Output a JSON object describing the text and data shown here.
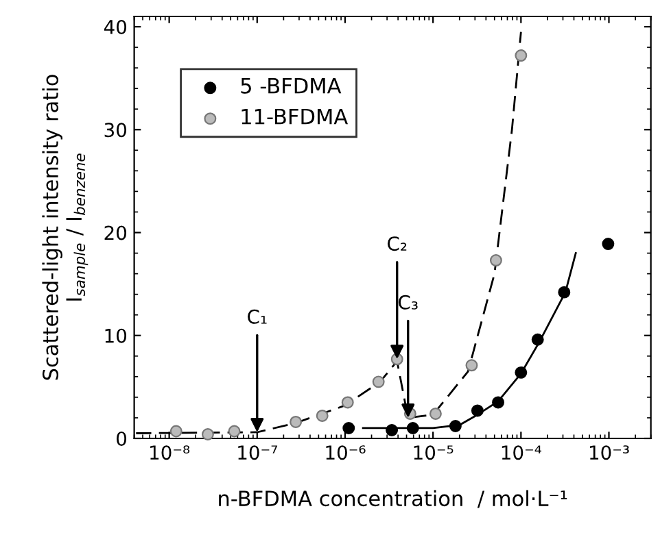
{
  "chart_data": {
    "type": "scatter",
    "xlabel": "n-BFDMA concentration  / mol·L⁻¹",
    "ylabel": "Scattered-light intensity ratio\nI$_{sample}$ / I$_{benzene}$",
    "log": "x",
    "legend": "top left",
    "grid": false,
    "xlim": [
      4e-09,
      0.003
    ],
    "xticks": [
      {
        "value": 1e-08,
        "label": "10⁻⁸"
      },
      {
        "value": 1e-07,
        "label": "10⁻⁷"
      },
      {
        "value": 1e-06,
        "label": "10⁻⁶"
      },
      {
        "value": 1e-05,
        "label": "10⁻⁵"
      },
      {
        "value": 0.0001,
        "label": "10⁻⁴"
      },
      {
        "value": 0.001,
        "label": "10⁻³"
      }
    ],
    "ylim": [
      0,
      41
    ],
    "yticks": [
      0,
      10,
      20,
      30,
      40
    ],
    "series": [
      {
        "name": "5 -BFDMA",
        "marker": "circle",
        "color": "#000000",
        "x": [
          1.1e-06,
          3.4e-06,
          5.9e-06,
          1.8e-05,
          3.2e-05,
          5.5e-05,
          0.0001,
          0.000155,
          0.00031,
          0.00098
        ],
        "values": [
          1.0,
          0.8,
          1.0,
          1.2,
          2.7,
          3.5,
          6.4,
          9.6,
          14.2,
          18.9
        ]
      },
      {
        "name": "11-BFDMA",
        "marker": "circle",
        "color": "#bbbbbb",
        "x": [
          1.2e-08,
          2.75e-08,
          5.5e-08,
          2.75e-07,
          5.5e-07,
          1.07e-06,
          2.4e-06,
          3.9e-06,
          5.5e-06,
          1.07e-05,
          2.75e-05,
          5.2e-05,
          0.0001
        ],
        "values": [
          0.7,
          0.4,
          0.7,
          1.6,
          2.2,
          3.5,
          5.5,
          7.7,
          2.4,
          2.4,
          7.1,
          17.3,
          37.2
        ]
      },
      {
        "type": "line",
        "line_style": "dashed",
        "marker": "none",
        "color": "#000000",
        "x": [
          4.2e-09,
          1e-07,
          2.75e-07,
          1e-06,
          2.5e-06,
          3.9e-06,
          5.2e-06,
          1e-05,
          2.5e-05,
          5e-05,
          7.9e-05,
          0.0001
        ],
        "values": [
          0.5,
          0.6,
          1.5,
          3.2,
          5.5,
          7.5,
          2.0,
          2.3,
          6.5,
          16,
          30,
          39.5
        ]
      },
      {
        "type": "line",
        "line_style": "solid",
        "marker": "none",
        "color": "#000000",
        "x": [
          1.6e-06,
          1e-05,
          2e-05,
          3.2e-05,
          5.5e-05,
          0.0001,
          0.00016,
          0.00032,
          0.00042
        ],
        "values": [
          1.0,
          1.0,
          1.3,
          2.3,
          3.6,
          6.3,
          9.3,
          14.2,
          18
        ]
      }
    ],
    "annotations": [
      {
        "text": "C₁",
        "x": 1e-07,
        "y": 0.6
      },
      {
        "text": "C₂",
        "x": 3.9e-06,
        "y": 7.7
      },
      {
        "text": "C₃",
        "x": 5.2e-06,
        "y": 2.0
      }
    ]
  }
}
